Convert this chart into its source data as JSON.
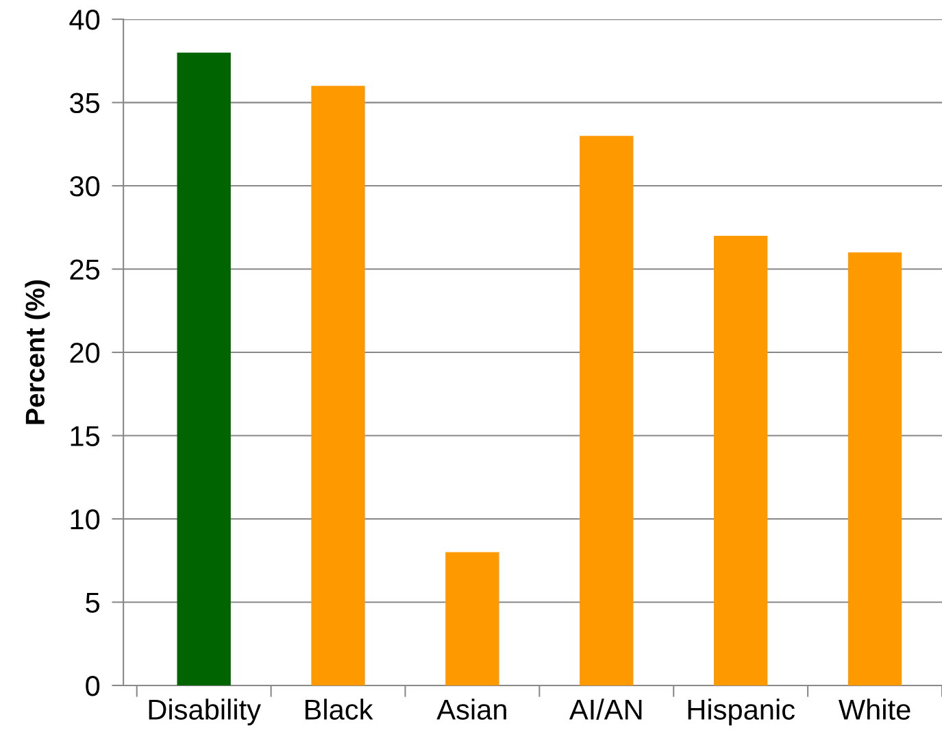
{
  "chart_data": {
    "type": "bar",
    "ylabel": "Percent (%)",
    "categories": [
      "Disability",
      "Black",
      "Asian",
      "AI/AN",
      "Hispanic",
      "White"
    ],
    "values": [
      38,
      36,
      8,
      33,
      27,
      26
    ],
    "colors": [
      "#006400",
      "#ff9900",
      "#ff9900",
      "#ff9900",
      "#ff9900",
      "#ff9900"
    ],
    "ylim": [
      0,
      40
    ],
    "yticks": [
      0,
      5,
      10,
      15,
      20,
      25,
      30,
      35,
      40
    ],
    "grid": "y",
    "legend": false
  }
}
